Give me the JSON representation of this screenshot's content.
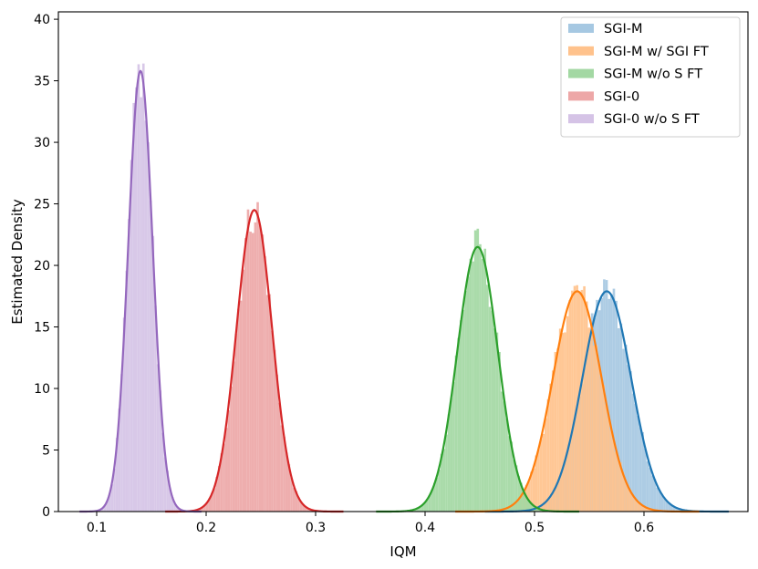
{
  "chart_data": {
    "type": "area",
    "xlabel": "IQM",
    "ylabel": "Estimated Density",
    "xlim": [
      0.065,
      0.695
    ],
    "ylim": [
      0,
      40.6
    ],
    "xticks": [
      0.1,
      0.2,
      0.3,
      0.4,
      0.5,
      0.6
    ],
    "xtick_labels": [
      "0.1",
      "0.2",
      "0.3",
      "0.4",
      "0.5",
      "0.6"
    ],
    "yticks": [
      0,
      5,
      10,
      15,
      20,
      25,
      30,
      35,
      40
    ],
    "ytick_labels": [
      "0",
      "5",
      "10",
      "15",
      "20",
      "25",
      "30",
      "35",
      "40"
    ],
    "grid": false,
    "legend_position": "top-right",
    "series": [
      {
        "name": "SGI-M",
        "color": "#1f77b4",
        "fill": "#a6c8e2",
        "mean": 0.566,
        "peak": 17.9
      },
      {
        "name": "SGI-M w/ SGI FT",
        "color": "#ff7f0e",
        "fill": "#ffc28c",
        "mean": 0.539,
        "peak": 17.9
      },
      {
        "name": "SGI-M w/o S FT",
        "color": "#2ca02c",
        "fill": "#a3d8a3",
        "mean": 0.448,
        "peak": 21.5
      },
      {
        "name": "SGI-0",
        "color": "#d62728",
        "fill": "#eda7a7",
        "mean": 0.244,
        "peak": 24.5
      },
      {
        "name": "SGI-0 w/o S FT",
        "color": "#9467bd",
        "fill": "#d5c3e6",
        "mean": 0.14,
        "peak": 35.8
      }
    ]
  }
}
